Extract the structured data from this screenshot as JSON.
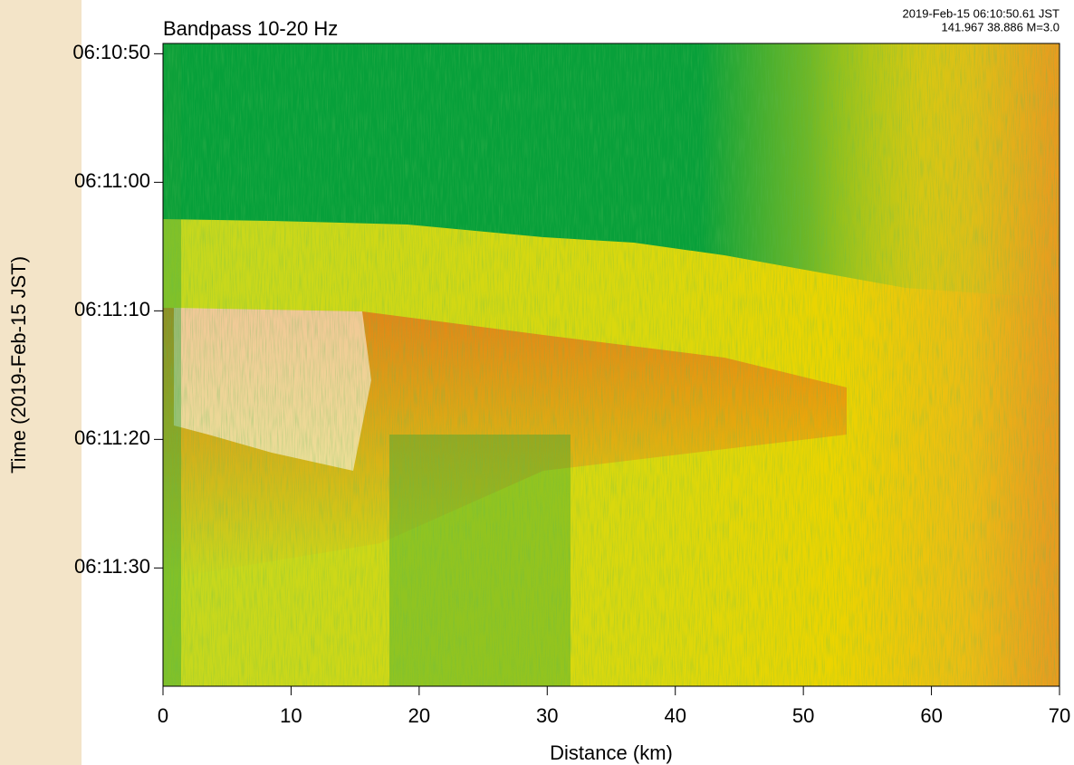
{
  "chart_data": {
    "type": "heatmap",
    "title": "Bandpass 10-20 Hz",
    "annotations": [
      "2019-Feb-15 06:10:50.61 JST",
      "141.967 38.886 M=3.0"
    ],
    "x_label": "Distance (km)",
    "y_label": "Time (2019-Feb-15 JST)",
    "xlim": [
      0,
      70
    ],
    "xticks": [
      0,
      10,
      20,
      30,
      40,
      50,
      60,
      70
    ],
    "ylim": [
      -0.8,
      49.2
    ],
    "y_inverted": true,
    "yticks": [
      {
        "value": 0,
        "label": "06:10:50"
      },
      {
        "value": 10,
        "label": "06:11:00"
      },
      {
        "value": 20,
        "label": "06:11:10"
      },
      {
        "value": 30,
        "label": "06:11:20"
      },
      {
        "value": 40,
        "label": "06:11:30"
      }
    ]
  }
}
